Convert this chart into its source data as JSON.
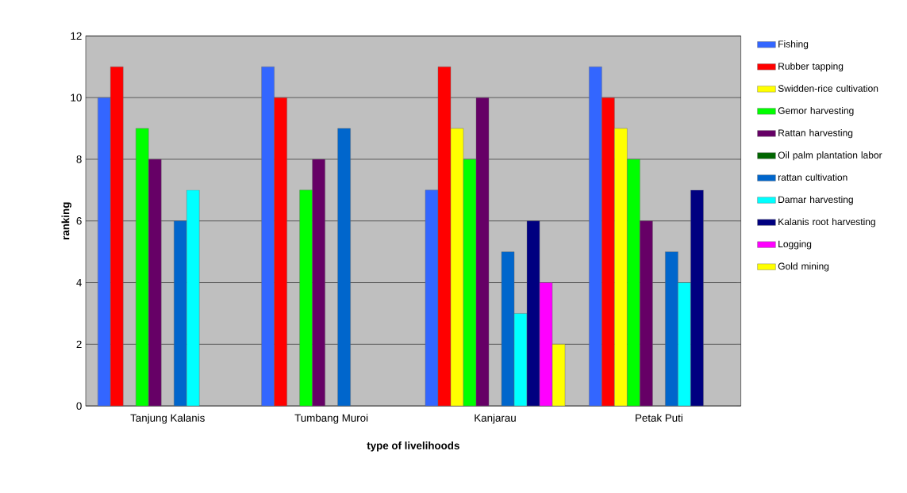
{
  "chart_data": {
    "type": "bar",
    "xlabel": "type of livelihoods",
    "ylabel": "ranking",
    "categories": [
      "Tanjung Kalanis",
      "Tumbang Muroi",
      "Kanjarau",
      "Petak Puti"
    ],
    "series": [
      {
        "name": "Fishing",
        "color": "#3366ff",
        "values": [
          10,
          11,
          7,
          11
        ]
      },
      {
        "name": "Rubber tapping",
        "color": "#ff0000",
        "values": [
          11,
          10,
          11,
          10
        ]
      },
      {
        "name": "Swidden-rice cultivation",
        "color": "#ffff00",
        "values": [
          null,
          null,
          9,
          9
        ]
      },
      {
        "name": "Gemor harvesting",
        "color": "#00ff00",
        "values": [
          9,
          7,
          8,
          8
        ]
      },
      {
        "name": "Rattan harvesting",
        "color": "#660066",
        "values": [
          8,
          8,
          10,
          6
        ]
      },
      {
        "name": "Oil palm plantation labor",
        "color": "#006600",
        "values": [
          null,
          null,
          null,
          null
        ]
      },
      {
        "name": "rattan cultivation",
        "color": "#0066cc",
        "values": [
          6,
          9,
          5,
          5
        ]
      },
      {
        "name": "Damar harvesting",
        "color": "#00ffff",
        "values": [
          7,
          null,
          3,
          4
        ]
      },
      {
        "name": "Kalanis root harvesting",
        "color": "#000080",
        "values": [
          null,
          null,
          6,
          7
        ]
      },
      {
        "name": "Logging",
        "color": "#ff00ff",
        "values": [
          null,
          null,
          4,
          null
        ]
      },
      {
        "name": "Gold mining",
        "color": "#ffff00",
        "values": [
          null,
          null,
          2,
          null
        ]
      }
    ],
    "ylim": [
      0,
      12
    ],
    "yticks": [
      0,
      2,
      4,
      6,
      8,
      10,
      12
    ],
    "grid": "y",
    "legend": "right"
  }
}
